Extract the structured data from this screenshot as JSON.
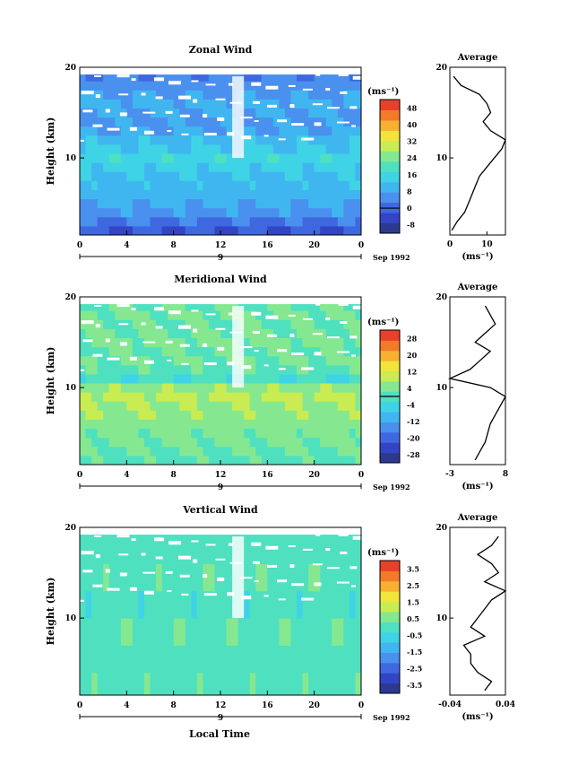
{
  "figure": {
    "xlabel": "Local Time",
    "x_ticks": [
      "0",
      "4",
      "8",
      "12",
      "16",
      "20",
      "0"
    ],
    "day_label": "9",
    "date_label": "Sep 1992"
  },
  "chart_data": [
    {
      "type": "heatmap",
      "title": "Zonal Wind",
      "ylabel": "Height (km)",
      "y_ticks": [
        "20",
        "10"
      ],
      "xlim": [
        0,
        24
      ],
      "ylim": [
        1.5,
        20
      ],
      "unit_label": "(ms⁻¹)",
      "colorbar_ticks": [
        "48",
        "40",
        "32",
        "24",
        "16",
        "8",
        "0",
        "-8"
      ],
      "colorbar_range": [
        -12,
        52
      ],
      "colorbar_zero": 0,
      "colors": [
        "#2b3a8f",
        "#3345c4",
        "#3f68e0",
        "#4a90ee",
        "#40b6f0",
        "#3fd3e6",
        "#4fe0c0",
        "#85e890",
        "#c8ec52",
        "#f2e43a",
        "#f8b030",
        "#f27a28",
        "#e8402a"
      ],
      "band_values": [
        [
          1.5,
          2.5,
          -2
        ],
        [
          2.5,
          3.5,
          2
        ],
        [
          3.5,
          4.5,
          6
        ],
        [
          4.5,
          5.5,
          9
        ],
        [
          5.5,
          6.5,
          10
        ],
        [
          6.5,
          7.5,
          11
        ],
        [
          7.5,
          8.5,
          12
        ],
        [
          8.5,
          9.5,
          14
        ],
        [
          9.5,
          10.5,
          16
        ],
        [
          10.5,
          11.5,
          13
        ],
        [
          11.5,
          12.5,
          11
        ],
        [
          12.5,
          13.5,
          8
        ],
        [
          13.5,
          14.5,
          7
        ],
        [
          14.5,
          15.5,
          8
        ],
        [
          15.5,
          16.5,
          9
        ],
        [
          16.5,
          17.5,
          7
        ],
        [
          17.5,
          18.5,
          5
        ],
        [
          18.5,
          19.2,
          4
        ]
      ],
      "profile": {
        "title": "Average",
        "xlim": [
          0,
          15
        ],
        "x_ticks": [
          "0",
          "10"
        ],
        "x_tick_values": [
          0,
          10
        ],
        "y_ticks": [
          "20",
          "10"
        ],
        "unit_label": "(ms⁻¹)",
        "heights": [
          2,
          3,
          4,
          5,
          6,
          7,
          8,
          9,
          10,
          11,
          12,
          13,
          14,
          15,
          16,
          17,
          18,
          19
        ],
        "values": [
          0.5,
          2,
          4,
          5,
          6,
          7,
          8,
          10,
          12,
          14,
          15,
          11,
          9,
          11,
          10,
          8,
          3,
          1
        ]
      }
    },
    {
      "type": "heatmap",
      "title": "Meridional Wind",
      "ylabel": "Height (km)",
      "y_ticks": [
        "20",
        "10"
      ],
      "xlim": [
        0,
        24
      ],
      "ylim": [
        1.5,
        20
      ],
      "unit_label": "(ms⁻¹)",
      "colorbar_ticks": [
        "28",
        "20",
        "12",
        "4",
        "-4",
        "-12",
        "-20",
        "-28"
      ],
      "colorbar_range": [
        -32,
        32
      ],
      "colorbar_zero": 0,
      "colors": [
        "#2b3a8f",
        "#3345c4",
        "#3f68e0",
        "#4a90ee",
        "#40b6f0",
        "#3fd3e6",
        "#4fe0c0",
        "#85e890",
        "#c8ec52",
        "#f2e43a",
        "#f8b030",
        "#f27a28",
        "#e8402a"
      ],
      "band_values": [
        [
          1.5,
          2.5,
          1
        ],
        [
          2.5,
          3.5,
          2
        ],
        [
          3.5,
          4.5,
          3
        ],
        [
          4.5,
          5.5,
          4
        ],
        [
          5.5,
          6.5,
          5
        ],
        [
          6.5,
          7.5,
          6
        ],
        [
          7.5,
          8.5,
          7
        ],
        [
          8.5,
          9.5,
          9
        ],
        [
          9.5,
          10.5,
          6
        ],
        [
          10.5,
          11.5,
          -2
        ],
        [
          11.5,
          12.5,
          1
        ],
        [
          12.5,
          13.5,
          3
        ],
        [
          13.5,
          14.5,
          2
        ],
        [
          14.5,
          15.5,
          4
        ],
        [
          15.5,
          16.5,
          3
        ],
        [
          16.5,
          17.5,
          2
        ],
        [
          17.5,
          18.5,
          3
        ],
        [
          18.5,
          19.2,
          2
        ]
      ],
      "profile": {
        "title": "Average",
        "xlim": [
          -3,
          8
        ],
        "x_ticks": [
          "-3",
          "8"
        ],
        "x_tick_values": [
          -3,
          8
        ],
        "y_ticks": [
          "20",
          "10"
        ],
        "unit_label": "(ms⁻¹)",
        "heights": [
          2,
          3,
          4,
          5,
          6,
          7,
          8,
          9,
          10,
          11,
          12,
          13,
          14,
          15,
          16,
          17,
          18,
          19
        ],
        "values": [
          2,
          3,
          4,
          4.5,
          5,
          6,
          7,
          8,
          5,
          -3,
          1,
          3,
          5,
          2,
          4,
          6,
          5,
          4
        ]
      }
    },
    {
      "type": "heatmap",
      "title": "Vertical Wind",
      "ylabel": "Height (km)",
      "y_ticks": [
        "20",
        "10"
      ],
      "xlim": [
        0,
        24
      ],
      "ylim": [
        1.5,
        20
      ],
      "unit_label": "(ms⁻¹)",
      "colorbar_ticks": [
        "3.5",
        "2.5",
        "1.5",
        "0.5",
        "-0.5",
        "-1.5",
        "-2.5",
        "-3.5"
      ],
      "colorbar_range": [
        -4,
        4
      ],
      "colorbar_zero": null,
      "colors": [
        "#2b3a8f",
        "#3345c4",
        "#3f68e0",
        "#4a90ee",
        "#40b6f0",
        "#3fd3e6",
        "#4fe0c0",
        "#85e890",
        "#c8ec52",
        "#f2e43a",
        "#f8b030",
        "#f27a28",
        "#e8402a"
      ],
      "band_values": [
        [
          1.5,
          4,
          0.1
        ],
        [
          4,
          7,
          0.0
        ],
        [
          7,
          10,
          0.1
        ],
        [
          10,
          13,
          -0.1
        ],
        [
          13,
          16,
          0.1
        ],
        [
          16,
          19.2,
          0.0
        ]
      ],
      "profile": {
        "title": "Average",
        "xlim": [
          -0.04,
          0.04
        ],
        "x_ticks": [
          "-0.04",
          "0.04"
        ],
        "x_tick_values": [
          -0.04,
          0.04
        ],
        "y_ticks": [
          "20",
          "10"
        ],
        "unit_label": "(ms⁻¹)",
        "heights": [
          2,
          3,
          4,
          5,
          6,
          7,
          8,
          9,
          10,
          11,
          12,
          13,
          14,
          15,
          16,
          17,
          18,
          19
        ],
        "values": [
          0.01,
          0.02,
          0.0,
          -0.01,
          -0.01,
          -0.02,
          0.01,
          -0.01,
          0.0,
          0.01,
          0.02,
          0.04,
          0.01,
          0.03,
          0.02,
          0.0,
          0.02,
          0.03
        ]
      }
    }
  ]
}
